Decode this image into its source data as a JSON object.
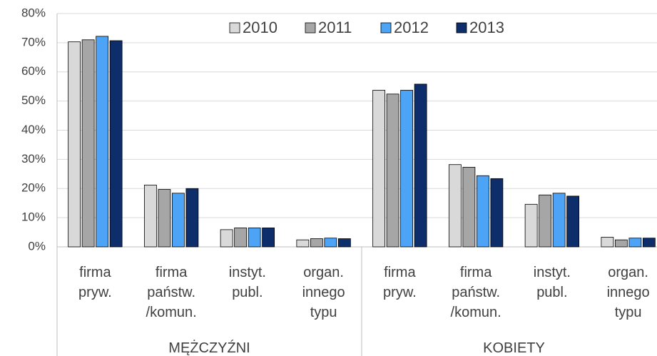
{
  "chart_data": {
    "type": "bar",
    "categories": [
      "firma\npryw.",
      "firma\npaństw.\n/komun.",
      "instyt.\npubl.",
      "organ.\ninnego\ntypu",
      "firma\npryw.",
      "firma\npaństw.\n/komun.",
      "instyt.\npubl.",
      "organ.\ninnego\ntypu"
    ],
    "category_groups": [
      "MĘŻCZYŹNI",
      "KOBIETY"
    ],
    "series": [
      {
        "name": "2010",
        "color": "#d9d9d9",
        "values": [
          70.3,
          21.2,
          5.9,
          2.4,
          53.7,
          28.2,
          14.6,
          3.3
        ]
      },
      {
        "name": "2011",
        "color": "#a6a6a6",
        "values": [
          71,
          19.7,
          6.5,
          2.8,
          52.4,
          27.3,
          17.8,
          2.4
        ]
      },
      {
        "name": "2012",
        "color": "#4da3f5",
        "values": [
          72.2,
          18.4,
          6.5,
          3,
          53.7,
          24.4,
          18.4,
          3
        ]
      },
      {
        "name": "2013",
        "color": "#0d2d6b",
        "values": [
          70.7,
          20,
          6.5,
          2.8,
          55.8,
          23.4,
          17.4,
          3
        ]
      }
    ],
    "ylim": [
      0,
      80
    ],
    "yticks": [
      {
        "value": 0,
        "label": "0%"
      },
      {
        "value": 10,
        "label": "10%"
      },
      {
        "value": 20,
        "label": "20%"
      },
      {
        "value": 30,
        "label": "30%"
      },
      {
        "value": 40,
        "label": "40%"
      },
      {
        "value": 50,
        "label": "50%"
      },
      {
        "value": 60,
        "label": "60%"
      },
      {
        "value": 70,
        "label": "70%"
      },
      {
        "value": 80,
        "label": "80%"
      }
    ],
    "grid": true,
    "legend": "top"
  }
}
